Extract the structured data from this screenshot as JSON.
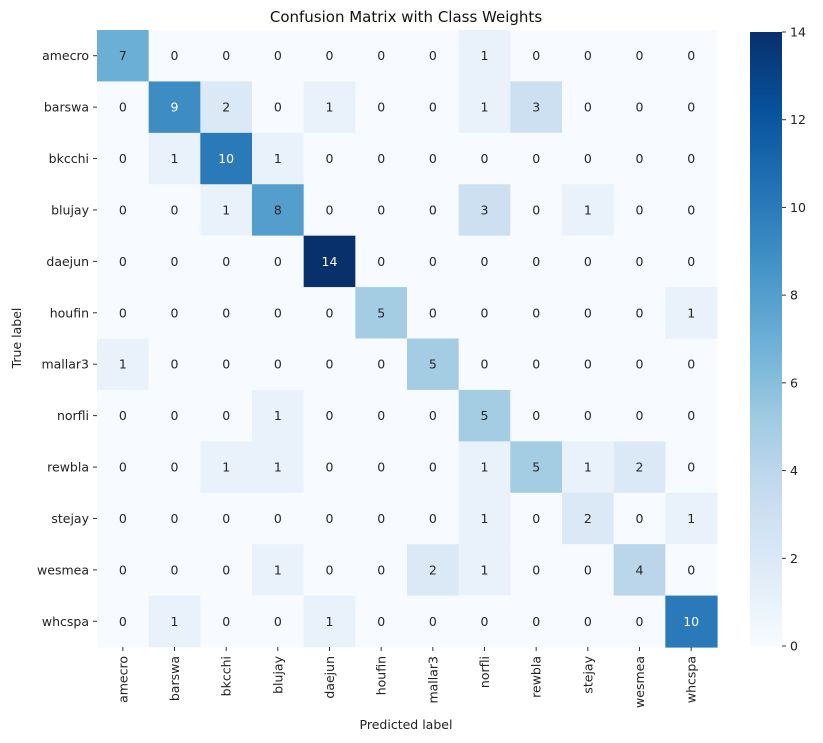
{
  "chart_data": {
    "type": "heatmap",
    "title": "Confusion Matrix with Class Weights",
    "xlabel": "Predicted label",
    "ylabel": "True label",
    "row_labels": [
      "amecro",
      "barswa",
      "bkcchi",
      "blujay",
      "daejun",
      "houfin",
      "mallar3",
      "norfli",
      "rewbla",
      "stejay",
      "wesmea",
      "whcspa"
    ],
    "col_labels": [
      "amecro",
      "barswa",
      "bkcchi",
      "blujay",
      "daejun",
      "houfin",
      "mallar3",
      "norfli",
      "rewbla",
      "stejay",
      "wesmea",
      "whcspa"
    ],
    "values": [
      [
        7,
        0,
        0,
        0,
        0,
        0,
        0,
        1,
        0,
        0,
        0,
        0
      ],
      [
        0,
        9,
        2,
        0,
        1,
        0,
        0,
        1,
        3,
        0,
        0,
        0
      ],
      [
        0,
        1,
        10,
        1,
        0,
        0,
        0,
        0,
        0,
        0,
        0,
        0
      ],
      [
        0,
        0,
        1,
        8,
        0,
        0,
        0,
        3,
        0,
        1,
        0,
        0
      ],
      [
        0,
        0,
        0,
        0,
        14,
        0,
        0,
        0,
        0,
        0,
        0,
        0
      ],
      [
        0,
        0,
        0,
        0,
        0,
        5,
        0,
        0,
        0,
        0,
        0,
        1
      ],
      [
        1,
        0,
        0,
        0,
        0,
        0,
        5,
        0,
        0,
        0,
        0,
        0
      ],
      [
        0,
        0,
        0,
        1,
        0,
        0,
        0,
        5,
        0,
        0,
        0,
        0
      ],
      [
        0,
        0,
        1,
        1,
        0,
        0,
        0,
        1,
        5,
        1,
        2,
        0
      ],
      [
        0,
        0,
        0,
        0,
        0,
        0,
        0,
        1,
        0,
        2,
        0,
        1
      ],
      [
        0,
        0,
        0,
        1,
        0,
        0,
        2,
        1,
        0,
        0,
        4,
        0
      ],
      [
        0,
        1,
        0,
        0,
        1,
        0,
        0,
        0,
        0,
        0,
        0,
        10
      ]
    ],
    "colormap": "Blues",
    "colorbar": {
      "min": 0,
      "max": 14,
      "ticks": [
        0,
        2,
        4,
        6,
        8,
        10,
        12,
        14
      ]
    },
    "grid": false
  }
}
